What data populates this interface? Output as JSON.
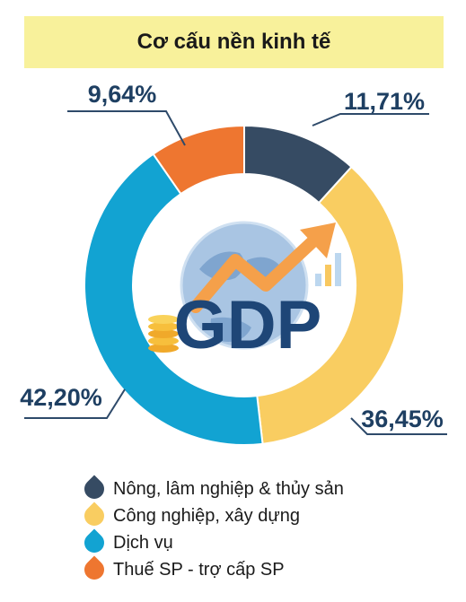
{
  "header": {
    "title": "Cơ cấu nền kinh tế"
  },
  "colors": {
    "agriculture": "#364b63",
    "industry": "#f9cd61",
    "services": "#12a3d2",
    "tax": "#ee7630",
    "label_text": "#1e3f62",
    "title_bg": "#f8f19b"
  },
  "center_image": {
    "icon": "globe-gdp-growth-icon",
    "text": "GDP"
  },
  "chart_data": {
    "type": "pie",
    "title": "Cơ cấu nền kinh tế",
    "categories": [
      "Nông, lâm nghiệp & thủy sản",
      "Công nghiệp, xây dựng",
      "Dịch vụ",
      "Thuế SP - trợ cấp SP"
    ],
    "values": [
      11.71,
      36.45,
      42.2,
      9.64
    ],
    "value_labels": [
      "11,71%",
      "36,45%",
      "42,20%",
      "9,64%"
    ],
    "donut": true,
    "legend_position": "bottom"
  },
  "legend": {
    "items": [
      {
        "label": "Nông, lâm nghiệp & thủy sản",
        "color": "#364b63"
      },
      {
        "label": "Công nghiệp, xây dựng",
        "color": "#f9cd61"
      },
      {
        "label": "Dịch vụ",
        "color": "#12a3d2"
      },
      {
        "label": "Thuế SP - trợ cấp SP",
        "color": "#ee7630"
      }
    ]
  }
}
